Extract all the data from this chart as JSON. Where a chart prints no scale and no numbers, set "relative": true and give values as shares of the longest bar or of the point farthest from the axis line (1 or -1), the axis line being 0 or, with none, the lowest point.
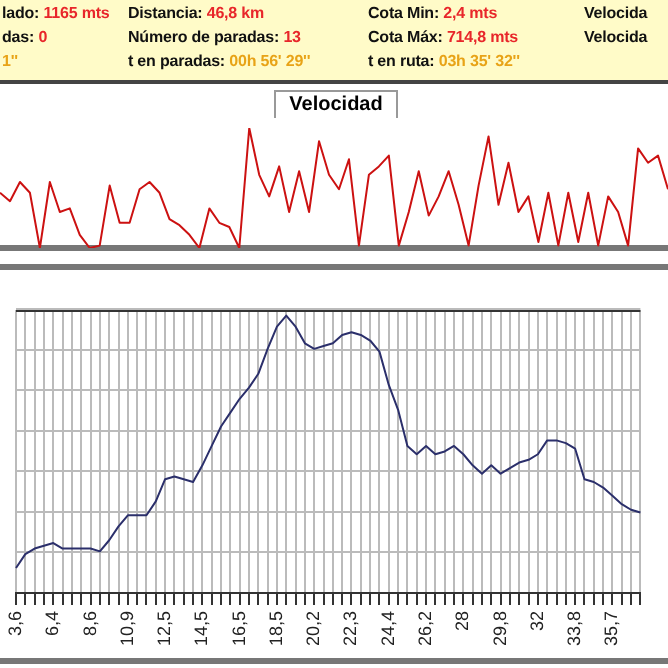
{
  "chart_data": [
    {
      "type": "other",
      "annotations": [
        "lado: 1165 mts",
        "das: 0",
        "1''",
        "Distancia: 46,8 km",
        "Número de paradas: 13",
        "t en paradas: 00h 56' 29''",
        "Cota Min: 2,4 mts",
        "Cota Máx: 714,8 mts",
        "t en ruta: 03h 35' 32''",
        "Velocida",
        "Velocida"
      ]
    },
    {
      "type": "line",
      "title": "Velocidad",
      "relative": true,
      "color": "#cc1111",
      "categories": [
        null,
        null,
        null,
        null,
        null,
        null,
        null,
        null,
        null,
        null,
        null,
        null,
        null,
        null,
        null,
        null,
        null,
        null,
        null,
        null,
        null,
        null,
        null,
        null,
        null,
        null,
        null,
        null,
        null,
        null,
        null,
        null,
        null,
        null,
        null,
        null,
        null,
        null,
        null,
        null,
        null,
        null,
        null,
        null,
        null,
        null,
        null,
        null,
        null,
        null,
        null,
        null,
        null,
        null,
        null,
        null,
        null,
        null,
        null,
        null,
        null,
        null,
        null,
        null,
        null,
        null,
        null,
        null
      ],
      "values": [
        0.46,
        0.39,
        0.55,
        0.46,
        0,
        0.55,
        0.3,
        0.33,
        0.11,
        0,
        0.02,
        0.52,
        0.21,
        0.21,
        0.49,
        0.55,
        0.46,
        0.24,
        0.19,
        0.11,
        0,
        0.33,
        0.21,
        0.175,
        0,
        1,
        0.61,
        0.43,
        0.68,
        0.3,
        0.64,
        0.3,
        0.89,
        0.61,
        0.49,
        0.74,
        0.02,
        0.61,
        0.68,
        0.77,
        0.02,
        0.3,
        0.64,
        0.27,
        0.43,
        0.64,
        0.36,
        0.02,
        0.52,
        0.93,
        0.36,
        0.71,
        0.3,
        0.43,
        0.05,
        0.46,
        0.02,
        0.46,
        0.05,
        0.46,
        0.02,
        0.43,
        0.3,
        0.02,
        0.83,
        0.71,
        0.77,
        0.49
      ]
    },
    {
      "type": "line",
      "relative": true,
      "color": "#2b2f6b",
      "grid": true,
      "categories": [
        "3,6",
        null,
        null,
        null,
        "6,4",
        null,
        null,
        null,
        "8,6",
        null,
        null,
        null,
        "10,9",
        null,
        null,
        null,
        "12,5",
        null,
        null,
        null,
        "14,5",
        null,
        null,
        null,
        "16,5",
        null,
        null,
        null,
        "18,5",
        null,
        null,
        null,
        "20,2",
        null,
        null,
        null,
        "22,3",
        null,
        null,
        null,
        "24,4",
        null,
        null,
        null,
        "26,2",
        null,
        null,
        null,
        "28",
        null,
        null,
        null,
        "29,8",
        null,
        null,
        null,
        "32",
        null,
        null,
        null,
        "33,8",
        null,
        null,
        null,
        "35,7",
        null,
        null,
        null
      ],
      "values": [
        0.09,
        0.14,
        0.16,
        0.17,
        0.18,
        0.16,
        0.16,
        0.16,
        0.16,
        0.15,
        0.19,
        0.24,
        0.28,
        0.28,
        0.28,
        0.33,
        0.41,
        0.42,
        0.41,
        0.4,
        0.46,
        0.53,
        0.6,
        0.65,
        0.7,
        0.74,
        0.79,
        0.88,
        0.96,
        1,
        0.96,
        0.9,
        0.88,
        0.89,
        0.9,
        0.93,
        0.94,
        0.93,
        0.91,
        0.87,
        0.75,
        0.66,
        0.53,
        0.5,
        0.53,
        0.5,
        0.51,
        0.53,
        0.5,
        0.46,
        0.43,
        0.46,
        0.43,
        0.45,
        0.47,
        0.48,
        0.5,
        0.55,
        0.55,
        0.54,
        0.52,
        0.41,
        0.4,
        0.38,
        0.35,
        0.32,
        0.3,
        0.29
      ]
    }
  ]
}
